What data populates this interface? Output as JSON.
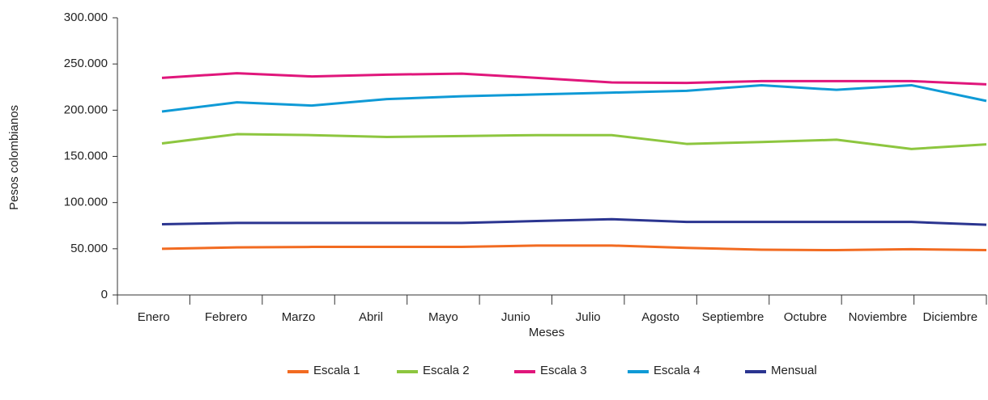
{
  "chart_data": {
    "type": "line",
    "x_label": "Meses",
    "y_label": "Pesos colombianos",
    "categories": [
      "Enero",
      "Febrero",
      "Marzo",
      "Abril",
      "Mayo",
      "Junio",
      "Julio",
      "Agosto",
      "Septiembre",
      "Octubre",
      "Noviembre",
      "Diciembre"
    ],
    "series": [
      {
        "name": "Escala 1",
        "color": "#f26b21",
        "values": [
          50000,
          51500,
          52000,
          52000,
          52000,
          53500,
          53500,
          51000,
          49000,
          48500,
          49500,
          48500
        ]
      },
      {
        "name": "Escala 2",
        "color": "#8dc63f",
        "values": [
          164000,
          174000,
          173000,
          171000,
          172000,
          173000,
          173000,
          163500,
          165500,
          168000,
          158000,
          163000
        ]
      },
      {
        "name": "Escala 3",
        "color": "#e0167b",
        "values": [
          235000,
          240000,
          236500,
          238500,
          239500,
          235000,
          230000,
          229500,
          231500,
          231500,
          231500,
          228000
        ]
      },
      {
        "name": "Escala 4",
        "color": "#0f9ad6",
        "values": [
          198500,
          208500,
          205000,
          212000,
          215000,
          217000,
          219000,
          221000,
          227000,
          222000,
          227000,
          210000
        ]
      },
      {
        "name": "Mensual",
        "color": "#2b3590",
        "values": [
          76500,
          78000,
          78000,
          78000,
          78000,
          80000,
          82000,
          79000,
          79000,
          79000,
          79000,
          76000
        ]
      }
    ],
    "ylim": [
      0,
      300000
    ],
    "yticks": [
      0,
      {
        "value": 50000,
        "label": "50.000"
      },
      {
        "value": 100000,
        "label": "100.000"
      },
      {
        "value": 150000,
        "label": "150.000"
      },
      {
        "value": 200000,
        "label": "200.000"
      },
      {
        "value": 250000,
        "label": "250.000"
      },
      {
        "value": 300000,
        "label": "300.000"
      }
    ],
    "grid": false,
    "legend": "bottom"
  }
}
